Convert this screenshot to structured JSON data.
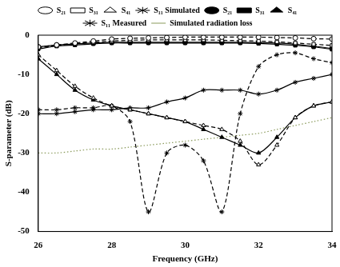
{
  "chart_data": {
    "type": "line",
    "x_label": "Frequency (GHz)",
    "y_label": "S-parameter (dB)",
    "x": [
      26,
      26.5,
      27,
      27.5,
      28,
      28.5,
      29,
      29.5,
      30,
      30.5,
      31,
      31.5,
      32,
      32.5,
      33,
      33.5,
      34
    ],
    "xlim": [
      26,
      34
    ],
    "xticks": [
      26,
      28,
      30,
      32,
      34
    ],
    "ylim": [
      -50,
      0
    ],
    "yticks": [
      -50,
      -40,
      -30,
      -20,
      -10,
      0
    ],
    "grid": false,
    "legend": "top",
    "series": [
      {
        "name": "S₂₁",
        "color": "#000000",
        "marker": "circle-open",
        "line_style": "dashed",
        "values": [
          -3,
          -2.5,
          -2,
          -1.5,
          -1,
          -0.8,
          -0.7,
          -0.6,
          -0.5,
          -0.5,
          -0.5,
          -0.5,
          -0.5,
          -0.6,
          -0.7,
          -0.9,
          -1
        ]
      },
      {
        "name": "S₃₁",
        "color": "#000000",
        "marker": "rect-open",
        "line_style": "dashed",
        "values": [
          -3.2,
          -2.7,
          -2.2,
          -1.8,
          -1.5,
          -1.3,
          -1.2,
          -1.2,
          -1.2,
          -1.2,
          -1.3,
          -1.4,
          -1.5,
          -1.7,
          -2,
          -2.3,
          -2.6
        ]
      },
      {
        "name": "S₄₁",
        "color": "#000000",
        "marker": "triangle-open",
        "line_style": "dashed",
        "values": [
          -5,
          -9,
          -13,
          -16,
          -18,
          -19,
          -20,
          -21,
          -22,
          -23,
          -24,
          -27,
          -33,
          -28,
          -21,
          -18,
          -17
        ]
      },
      {
        "name": "S₁₁ Simulated",
        "color": "#000000",
        "marker": "star-open",
        "line_style": "dashed",
        "values": [
          -19,
          -19,
          -18.5,
          -18.5,
          -18,
          -22,
          -45,
          -30,
          -28,
          -32,
          -45,
          -20,
          -8,
          -5,
          -4.5,
          -6,
          -7
        ]
      },
      {
        "name": "S₂₁",
        "color": "#000000",
        "marker": "circle",
        "line_style": "solid",
        "values": [
          -3,
          -2.5,
          -2.2,
          -2,
          -1.8,
          -1.8,
          -1.8,
          -1.8,
          -1.8,
          -1.8,
          -1.8,
          -1.8,
          -1.9,
          -2,
          -2.3,
          -2.8,
          -3.4
        ]
      },
      {
        "name": "S₃₁",
        "color": "#000000",
        "marker": "rect",
        "line_style": "solid",
        "values": [
          -3.5,
          -2.8,
          -2.5,
          -2.2,
          -2,
          -2,
          -2,
          -2,
          -2,
          -2,
          -2,
          -2,
          -2.1,
          -2.3,
          -2.6,
          -3,
          -3.6
        ]
      },
      {
        "name": "S₄₁",
        "color": "#000000",
        "marker": "triangle",
        "line_style": "solid",
        "values": [
          -6,
          -10,
          -14,
          -16.5,
          -18,
          -19,
          -20,
          -21,
          -22,
          -24,
          -26,
          -28,
          -30,
          -26,
          -21,
          -18,
          -17
        ]
      },
      {
        "name": "S₁₁ Measured",
        "color": "#000000",
        "marker": "star",
        "line_style": "solid",
        "values": [
          -20,
          -20,
          -19.5,
          -19,
          -19,
          -18.5,
          -18.5,
          -17,
          -16,
          -14,
          -14,
          -14,
          -15,
          -14,
          -12,
          -11,
          -10
        ]
      },
      {
        "name": "Simulated radiation loss",
        "color": "#8a9a5b",
        "marker": "none",
        "line_style": "dotted",
        "values": [
          -30,
          -30,
          -29.5,
          -29,
          -29,
          -28.5,
          -28,
          -27.5,
          -27,
          -26.5,
          -26,
          -25.5,
          -25,
          -24,
          -23,
          -22,
          -21
        ]
      }
    ]
  }
}
